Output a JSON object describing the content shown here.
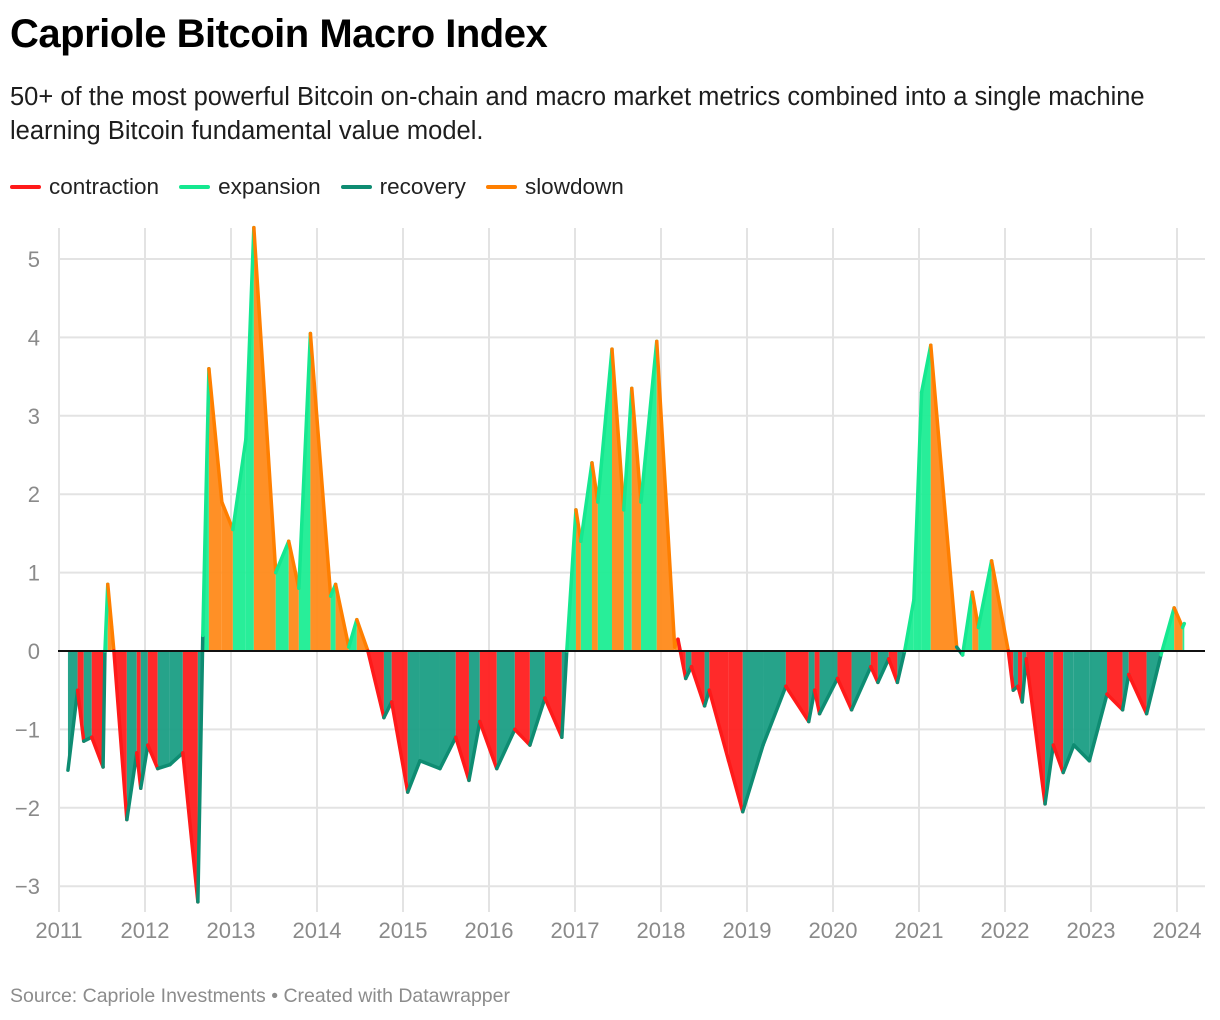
{
  "title": "Capriole Bitcoin Macro Index",
  "subtitle": "50+ of the most powerful Bitcoin on-chain and macro market metrics combined into a single machine learning Bitcoin fundamental value model.",
  "source": "Source: Capriole Investments • Created with Datawrapper",
  "chart_data": {
    "type": "area",
    "title": "Capriole Bitcoin Macro Index",
    "legend_position": "top-left",
    "grid": true,
    "xlim": [
      "2011-01-01",
      "2024-04-01"
    ],
    "ylim": [
      -3.25,
      5.4
    ],
    "x_ticks": [
      "2011",
      "2012",
      "2013",
      "2014",
      "2015",
      "2016",
      "2017",
      "2018",
      "2019",
      "2020",
      "2021",
      "2022",
      "2023",
      "2024"
    ],
    "y_ticks": [
      {
        "value": 5,
        "label": "5"
      },
      {
        "value": 4,
        "label": "4"
      },
      {
        "value": 3,
        "label": "3"
      },
      {
        "value": 2,
        "label": "2"
      },
      {
        "value": 1,
        "label": "1"
      },
      {
        "value": 0,
        "label": "0"
      },
      {
        "value": -1,
        "label": "−1"
      },
      {
        "value": -2,
        "label": "−2"
      },
      {
        "value": -3,
        "label": "−3"
      }
    ],
    "series": [
      {
        "name": "contraction",
        "color": "#ff1a1a",
        "fill": "#ff1f1f"
      },
      {
        "name": "expansion",
        "color": "#15e890",
        "fill": "#1ced93"
      },
      {
        "name": "recovery",
        "color": "#0e8c72",
        "fill": "#1a9e84"
      },
      {
        "name": "slowdown",
        "color": "#ff7f00",
        "fill": "#ff8a1a"
      }
    ],
    "points": [
      [
        "2011-02-08",
        -1.52,
        "recovery"
      ],
      [
        "2011-03-21",
        -0.5,
        "recovery"
      ],
      [
        "2011-04-16",
        -1.15,
        "contraction"
      ],
      [
        "2011-05-20",
        -1.1,
        "recovery"
      ],
      [
        "2011-07-07",
        -1.48,
        "contraction"
      ],
      [
        "2011-07-15",
        0,
        "recovery"
      ],
      [
        "2011-07-27",
        0.85,
        "expansion"
      ],
      [
        "2011-08-13",
        0.3,
        "slowdown"
      ],
      [
        "2011-08-22",
        0,
        "slowdown"
      ],
      [
        "2011-10-16",
        -2.15,
        "contraction"
      ],
      [
        "2011-11-27",
        -1.3,
        "recovery"
      ],
      [
        "2011-12-14",
        -1.75,
        "contraction"
      ],
      [
        "2012-01-13",
        -1.2,
        "recovery"
      ],
      [
        "2012-02-24",
        -1.5,
        "contraction"
      ],
      [
        "2012-04-16",
        -1.45,
        "recovery"
      ],
      [
        "2012-06-10",
        -1.3,
        "recovery"
      ],
      [
        "2012-08-13",
        -3.2,
        "contraction"
      ],
      [
        "2012-09-03",
        0.2,
        "recovery"
      ],
      [
        "2012-09-29",
        3.6,
        "expansion"
      ],
      [
        "2012-11-23",
        1.9,
        "slowdown"
      ],
      [
        "2013-01-09",
        1.55,
        "slowdown"
      ],
      [
        "2013-03-05",
        2.7,
        "expansion"
      ],
      [
        "2013-04-08",
        5.4,
        "expansion"
      ],
      [
        "2013-07-10",
        1.0,
        "slowdown"
      ],
      [
        "2013-09-03",
        1.4,
        "expansion"
      ],
      [
        "2013-10-16",
        0.8,
        "slowdown"
      ],
      [
        "2013-12-04",
        4.05,
        "expansion"
      ],
      [
        "2014-02-28",
        0.7,
        "slowdown"
      ],
      [
        "2014-03-21",
        0.85,
        "expansion"
      ],
      [
        "2014-05-16",
        0.05,
        "slowdown"
      ],
      [
        "2014-06-19",
        0.4,
        "expansion"
      ],
      [
        "2014-08-05",
        0,
        "slowdown"
      ],
      [
        "2014-10-12",
        -0.85,
        "contraction"
      ],
      [
        "2014-11-14",
        -0.65,
        "recovery"
      ],
      [
        "2015-01-21",
        -1.8,
        "contraction"
      ],
      [
        "2015-03-14",
        -1.4,
        "recovery"
      ],
      [
        "2015-06-07",
        -1.5,
        "recovery"
      ],
      [
        "2015-08-13",
        -1.1,
        "recovery"
      ],
      [
        "2015-10-08",
        -1.65,
        "contraction"
      ],
      [
        "2015-11-23",
        -0.9,
        "recovery"
      ],
      [
        "2016-02-03",
        -1.5,
        "contraction"
      ],
      [
        "2016-04-20",
        -1.0,
        "recovery"
      ],
      [
        "2016-06-23",
        -1.2,
        "contraction"
      ],
      [
        "2016-08-26",
        -0.6,
        "recovery"
      ],
      [
        "2016-11-06",
        -1.1,
        "contraction"
      ],
      [
        "2016-11-27",
        0,
        "recovery"
      ],
      [
        "2017-01-05",
        1.8,
        "expansion"
      ],
      [
        "2017-01-26",
        1.4,
        "slowdown"
      ],
      [
        "2017-03-14",
        2.4,
        "expansion"
      ],
      [
        "2017-04-08",
        1.9,
        "slowdown"
      ],
      [
        "2017-06-07",
        3.85,
        "expansion"
      ],
      [
        "2017-07-27",
        1.8,
        "slowdown"
      ],
      [
        "2017-08-30",
        3.35,
        "expansion"
      ],
      [
        "2017-10-08",
        1.9,
        "slowdown"
      ],
      [
        "2017-12-14",
        3.95,
        "expansion"
      ],
      [
        "2018-02-28",
        0.05,
        "slowdown"
      ],
      [
        "2018-03-14",
        0.15,
        "slowdown"
      ],
      [
        "2018-04-16",
        -0.35,
        "contraction"
      ],
      [
        "2018-05-10",
        -0.2,
        "recovery"
      ],
      [
        "2018-07-05",
        -0.7,
        "contraction"
      ],
      [
        "2018-07-25",
        -0.5,
        "recovery"
      ],
      [
        "2018-10-15",
        -1.4,
        "contraction"
      ],
      [
        "2018-12-14",
        -2.05,
        "contraction"
      ],
      [
        "2019-03-10",
        -1.2,
        "recovery"
      ],
      [
        "2019-06-15",
        -0.45,
        "recovery"
      ],
      [
        "2019-09-20",
        -0.9,
        "contraction"
      ],
      [
        "2019-10-15",
        -0.5,
        "recovery"
      ],
      [
        "2019-11-05",
        -0.8,
        "contraction"
      ],
      [
        "2020-01-20",
        -0.35,
        "recovery"
      ],
      [
        "2020-03-20",
        -0.75,
        "contraction"
      ],
      [
        "2020-06-10",
        -0.2,
        "recovery"
      ],
      [
        "2020-07-10",
        -0.4,
        "contraction"
      ],
      [
        "2020-08-25",
        -0.1,
        "recovery"
      ],
      [
        "2020-10-01",
        -0.4,
        "contraction"
      ],
      [
        "2020-11-01",
        0,
        "recovery"
      ],
      [
        "2020-12-10",
        0.65,
        "expansion"
      ],
      [
        "2021-01-12",
        3.3,
        "expansion"
      ],
      [
        "2021-02-20",
        3.9,
        "expansion"
      ],
      [
        "2021-06-10",
        0.05,
        "slowdown"
      ],
      [
        "2021-07-05",
        -0.05,
        "recovery"
      ],
      [
        "2021-08-15",
        0.75,
        "expansion"
      ],
      [
        "2021-09-10",
        0.3,
        "slowdown"
      ],
      [
        "2021-11-05",
        1.15,
        "expansion"
      ],
      [
        "2022-01-15",
        0,
        "slowdown"
      ],
      [
        "2022-02-05",
        -0.5,
        "contraction"
      ],
      [
        "2022-02-25",
        -0.45,
        "recovery"
      ],
      [
        "2022-03-15",
        -0.65,
        "contraction"
      ],
      [
        "2022-04-01",
        -0.1,
        "recovery"
      ],
      [
        "2022-06-20",
        -1.95,
        "contraction"
      ],
      [
        "2022-07-25",
        -1.2,
        "recovery"
      ],
      [
        "2022-09-05",
        -1.55,
        "contraction"
      ],
      [
        "2022-10-20",
        -1.2,
        "recovery"
      ],
      [
        "2022-12-25",
        -1.4,
        "recovery"
      ],
      [
        "2023-03-10",
        -0.55,
        "recovery"
      ],
      [
        "2023-05-15",
        -0.75,
        "contraction"
      ],
      [
        "2023-06-10",
        -0.3,
        "recovery"
      ],
      [
        "2023-08-25",
        -0.8,
        "contraction"
      ],
      [
        "2023-10-25",
        -0.05,
        "recovery"
      ],
      [
        "2023-12-20",
        0.55,
        "expansion"
      ],
      [
        "2024-01-25",
        0.3,
        "slowdown"
      ],
      [
        "2024-02-01",
        0.35,
        "expansion"
      ]
    ]
  }
}
